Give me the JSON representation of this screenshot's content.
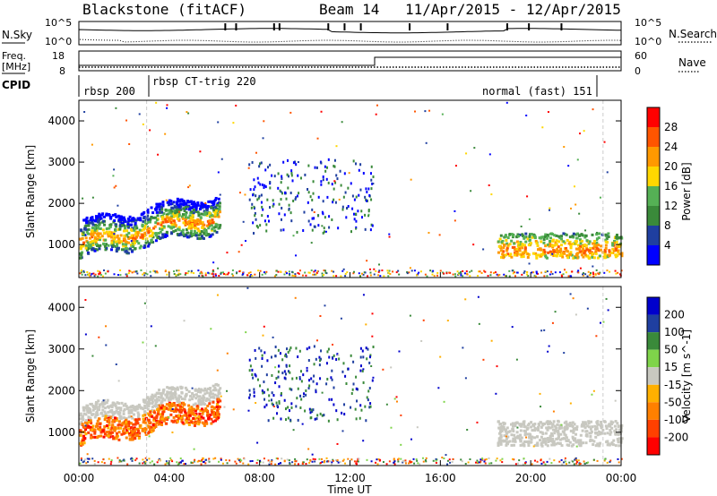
{
  "header": {
    "radar": "Blackstone (fitACF)",
    "beam": "Beam 14",
    "daterange": "11/Apr/2015 - 12/Apr/2015"
  },
  "top_panels": {
    "nsky_label": "N.Sky",
    "nsearch_label": "N.Search",
    "nsky_ticks": [
      "10^5",
      "10^0"
    ],
    "freq_label": "Freq.",
    "freq_unit": "[MHz]",
    "freq_ticks": [
      "18",
      "8"
    ],
    "nave_label": "Nave",
    "nave_ticks": [
      "60",
      "0"
    ],
    "cpid_label": "CPID",
    "cpid_segments": [
      "rbsp 200",
      "rbsp CT-trig 220",
      "normal (fast) 151"
    ]
  },
  "colors": {
    "power_scale": [
      "#0000ff",
      "#1f3fa0",
      "#3a8a3a",
      "#55b055",
      "#ffd700",
      "#ff9900",
      "#ff5500",
      "#ff0000"
    ],
    "velocity_scale": [
      "#0000cc",
      "#1f3fa0",
      "#3a8a3a",
      "#7fd44a",
      "#c8c8c0",
      "#ffb000",
      "#ff8000",
      "#ff4000",
      "#ff0000"
    ]
  },
  "chart_data": [
    {
      "type": "heatmap",
      "title": "",
      "quantity": "Power",
      "xlabel": "",
      "ylabel": "Slant Range [km]",
      "x_ticks": [
        "00:00",
        "04:00",
        "08:00",
        "12:00",
        "16:00",
        "20:00",
        "00:00"
      ],
      "y_ticks": [
        1000,
        2000,
        3000,
        4000
      ],
      "ylim": [
        200,
        4500
      ],
      "colorbar_label": "Power [dB]",
      "colorbar_ticks": [
        4,
        8,
        12,
        16,
        20,
        24,
        28
      ]
    },
    {
      "type": "heatmap",
      "title": "",
      "quantity": "Velocity",
      "xlabel": "Time UT",
      "ylabel": "Slant Range [km]",
      "x_ticks": [
        "00:00",
        "04:00",
        "08:00",
        "12:00",
        "16:00",
        "20:00",
        "00:00"
      ],
      "y_ticks": [
        1000,
        2000,
        3000,
        4000
      ],
      "ylim": [
        200,
        4500
      ],
      "colorbar_label": "Velocity [m s^-1]",
      "colorbar_ticks": [
        200,
        100,
        50,
        15,
        -15,
        -50,
        -100,
        -200
      ]
    }
  ]
}
